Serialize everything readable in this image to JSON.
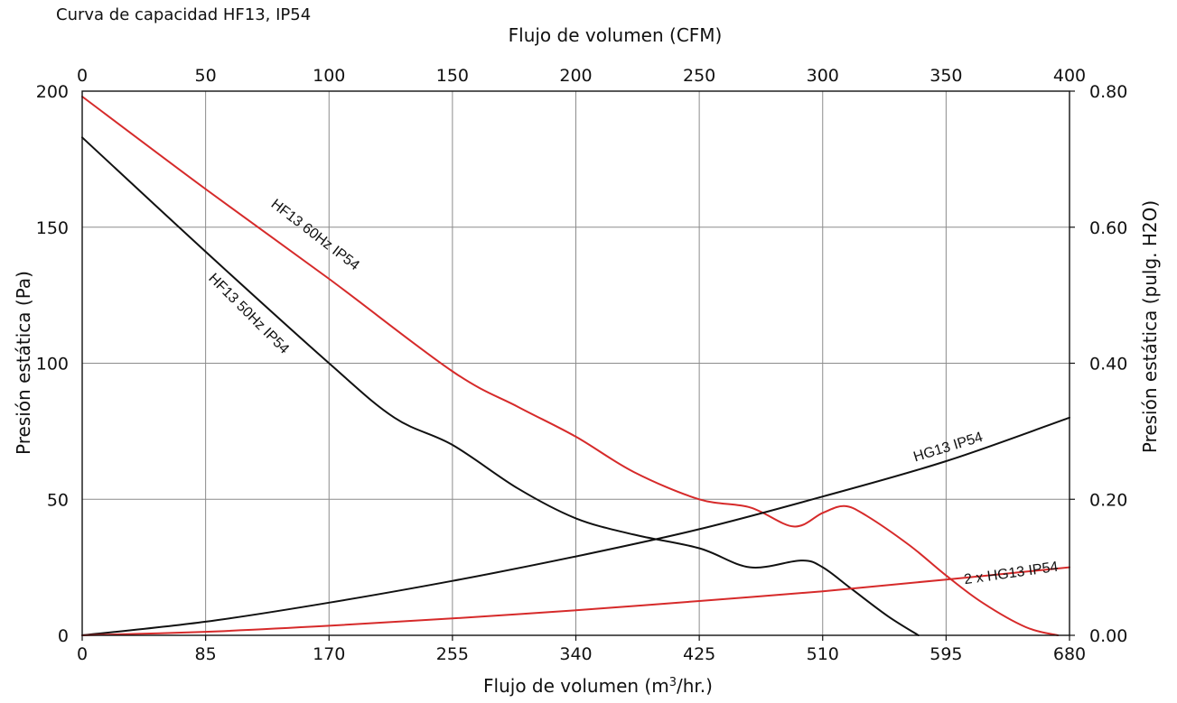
{
  "chart_data": {
    "type": "line",
    "title": "Curva de capacidad HF13, IP54",
    "xlabel_bottom": "Flujo de volumen (m³/hr.)",
    "xlabel_top": "Flujo de volumen (CFM)",
    "ylabel_left": "Presión estática (Pa)",
    "ylabel_right": "Presión estática (pulg. H2O)",
    "xlim": [
      0,
      680
    ],
    "ylim": [
      0,
      200
    ],
    "x2lim": [
      0,
      400
    ],
    "y2lim": [
      0,
      0.8
    ],
    "x_ticks": [
      "0",
      "85",
      "170",
      "255",
      "340",
      "425",
      "510",
      "595",
      "680"
    ],
    "x_tick_values": [
      0,
      85,
      170,
      255,
      340,
      425,
      510,
      595,
      680
    ],
    "x2_ticks": [
      "0",
      "50",
      "100",
      "150",
      "200",
      "250",
      "300",
      "350",
      "400"
    ],
    "y_ticks": [
      "0",
      "50",
      "100",
      "150",
      "200"
    ],
    "y_tick_values": [
      0,
      50,
      100,
      150,
      200
    ],
    "y2_ticks": [
      "0.00",
      "0.20",
      "0.40",
      "0.60",
      "0.80"
    ],
    "grid": true,
    "series": [
      {
        "name": "HF13 60Hz IP54",
        "color": "#d62a2a",
        "x": [
          0,
          85,
          170,
          255,
          300,
          340,
          380,
          425,
          460,
          490,
          510,
          525,
          540,
          570,
          595,
          620,
          650,
          672
        ],
        "y": [
          198,
          164,
          131,
          97,
          84,
          73,
          60,
          50,
          47,
          40,
          45,
          47.5,
          44,
          33,
          22,
          12,
          3,
          0
        ]
      },
      {
        "name": "HF13 50Hz IP54",
        "color": "#111111",
        "x": [
          0,
          85,
          170,
          215,
          255,
          300,
          340,
          380,
          425,
          460,
          495,
          510,
          530,
          555,
          576
        ],
        "y": [
          183,
          141,
          100,
          80,
          70,
          54,
          43,
          37,
          32,
          25,
          27.5,
          25,
          17,
          7,
          0
        ]
      },
      {
        "name": "HG13 IP54",
        "color": "#111111",
        "x": [
          0,
          85,
          170,
          255,
          340,
          425,
          510,
          595,
          680
        ],
        "y": [
          0,
          5,
          12,
          20,
          29,
          39,
          51,
          64,
          80
        ]
      },
      {
        "name": "2 x HG13 IP54",
        "color": "#d62a2a",
        "x": [
          0,
          85,
          170,
          255,
          340,
          425,
          510,
          595,
          680
        ],
        "y": [
          0,
          1.3,
          3.5,
          6.2,
          9.2,
          12.6,
          16.2,
          20.5,
          25
        ]
      }
    ]
  }
}
